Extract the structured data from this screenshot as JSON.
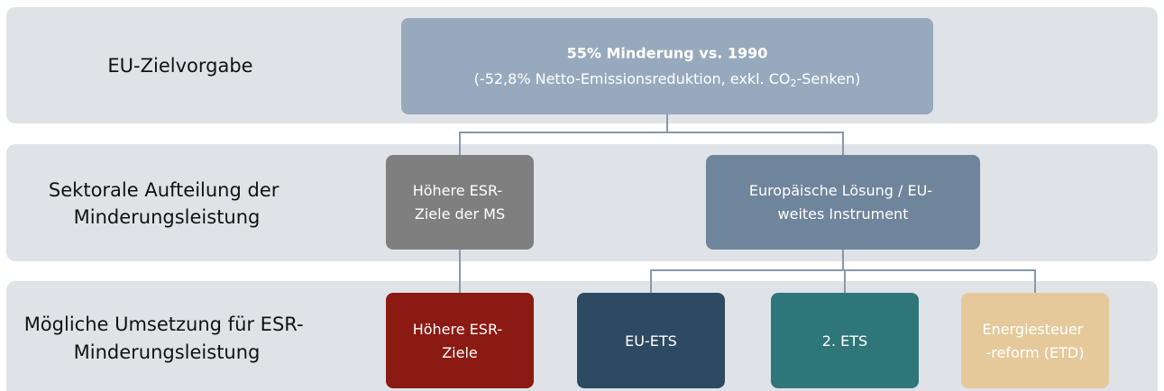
{
  "rows": [
    {
      "label": [
        "EU-Zielvorgabe"
      ]
    },
    {
      "label": [
        "Sektorale Aufteilung der",
        "Minderungsleistung"
      ]
    },
    {
      "label": [
        "Mögliche Umsetzung für ESR-",
        "Minderungsleistung"
      ]
    }
  ],
  "target": {
    "title": "55% Minderung vs. 1990",
    "note_start": "(-52,8% Netto-Emissionsreduktion, exkl. CO",
    "note_sub": "2",
    "note_end": "-Senken)"
  },
  "split": [
    {
      "lines": [
        "Höhere ESR-",
        "Ziele der MS"
      ]
    },
    {
      "lines": [
        "Europäische Lösung / EU-",
        "weites Instrument"
      ]
    }
  ],
  "options": [
    {
      "lines": [
        "Höhere ESR-",
        "Ziele"
      ]
    },
    {
      "lines": [
        "EU-ETS"
      ]
    },
    {
      "lines": [
        "2. ETS"
      ]
    },
    {
      "lines": [
        "Energiesteuer",
        "-reform (ETD)"
      ]
    }
  ]
}
